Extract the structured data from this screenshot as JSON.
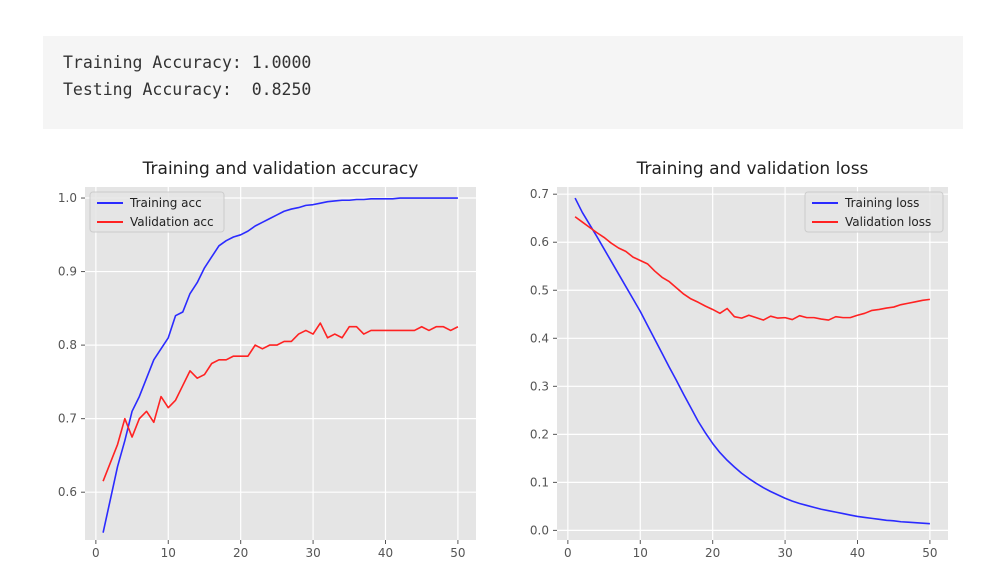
{
  "output": {
    "lines": [
      "Training Accuracy: 1.0000",
      "Testing Accuracy:  0.8250"
    ]
  },
  "colors": {
    "training": "#2b2bff",
    "validation": "#ff2222",
    "plot_bg": "#e5e5e5",
    "grid": "#ffffff"
  },
  "chart_data": [
    {
      "type": "line",
      "title": "Training and validation accuracy",
      "xlabel": "",
      "ylabel": "",
      "xlim": [
        -1.5,
        52.5
      ],
      "ylim": [
        0.535,
        1.015
      ],
      "xticks": [
        0,
        10,
        20,
        30,
        40,
        50
      ],
      "yticks": [
        0.6,
        0.7,
        0.8,
        0.9,
        1.0
      ],
      "xtick_labels": [
        "0",
        "10",
        "20",
        "30",
        "40",
        "50"
      ],
      "ytick_labels": [
        "0.6",
        "0.7",
        "0.8",
        "0.9",
        "1.0"
      ],
      "grid": true,
      "legend_position": "upper-left",
      "x": [
        1,
        2,
        3,
        4,
        5,
        6,
        7,
        8,
        9,
        10,
        11,
        12,
        13,
        14,
        15,
        16,
        17,
        18,
        19,
        20,
        21,
        22,
        23,
        24,
        25,
        26,
        27,
        28,
        29,
        30,
        31,
        32,
        33,
        34,
        35,
        36,
        37,
        38,
        39,
        40,
        41,
        42,
        43,
        44,
        45,
        46,
        47,
        48,
        49,
        50
      ],
      "series": [
        {
          "name": "Training acc",
          "color": "#2b2bff",
          "values": [
            0.545,
            0.59,
            0.635,
            0.67,
            0.71,
            0.73,
            0.755,
            0.78,
            0.795,
            0.81,
            0.84,
            0.845,
            0.87,
            0.885,
            0.905,
            0.92,
            0.935,
            0.942,
            0.947,
            0.95,
            0.955,
            0.962,
            0.967,
            0.972,
            0.977,
            0.982,
            0.985,
            0.987,
            0.99,
            0.991,
            0.993,
            0.995,
            0.996,
            0.997,
            0.997,
            0.998,
            0.998,
            0.999,
            0.999,
            0.999,
            0.999,
            1.0,
            1.0,
            1.0,
            1.0,
            1.0,
            1.0,
            1.0,
            1.0,
            1.0
          ]
        },
        {
          "name": "Validation acc",
          "color": "#ff2222",
          "values": [
            0.615,
            0.64,
            0.665,
            0.7,
            0.675,
            0.7,
            0.71,
            0.695,
            0.73,
            0.715,
            0.725,
            0.745,
            0.765,
            0.755,
            0.76,
            0.775,
            0.78,
            0.78,
            0.785,
            0.785,
            0.785,
            0.8,
            0.795,
            0.8,
            0.8,
            0.805,
            0.805,
            0.815,
            0.82,
            0.815,
            0.83,
            0.81,
            0.815,
            0.81,
            0.825,
            0.825,
            0.815,
            0.82,
            0.82,
            0.82,
            0.82,
            0.82,
            0.82,
            0.82,
            0.825,
            0.82,
            0.825,
            0.825,
            0.82,
            0.825
          ]
        }
      ]
    },
    {
      "type": "line",
      "title": "Training and validation loss",
      "xlabel": "",
      "ylabel": "",
      "xlim": [
        -1.5,
        52.5
      ],
      "ylim": [
        -0.02,
        0.715
      ],
      "xticks": [
        0,
        10,
        20,
        30,
        40,
        50
      ],
      "yticks": [
        0.0,
        0.1,
        0.2,
        0.3,
        0.4,
        0.5,
        0.6,
        0.7
      ],
      "xtick_labels": [
        "0",
        "10",
        "20",
        "30",
        "40",
        "50"
      ],
      "ytick_labels": [
        "0.0",
        "0.1",
        "0.2",
        "0.3",
        "0.4",
        "0.5",
        "0.6",
        "0.7"
      ],
      "grid": true,
      "legend_position": "upper-right",
      "x": [
        1,
        2,
        3,
        4,
        5,
        6,
        7,
        8,
        9,
        10,
        11,
        12,
        13,
        14,
        15,
        16,
        17,
        18,
        19,
        20,
        21,
        22,
        23,
        24,
        25,
        26,
        27,
        28,
        29,
        30,
        31,
        32,
        33,
        34,
        35,
        36,
        37,
        38,
        39,
        40,
        41,
        42,
        43,
        44,
        45,
        46,
        47,
        48,
        49,
        50
      ],
      "series": [
        {
          "name": "Training loss",
          "color": "#2b2bff",
          "values": [
            0.692,
            0.662,
            0.637,
            0.612,
            0.586,
            0.56,
            0.534,
            0.508,
            0.482,
            0.456,
            0.427,
            0.398,
            0.369,
            0.34,
            0.312,
            0.283,
            0.255,
            0.227,
            0.203,
            0.181,
            0.162,
            0.146,
            0.132,
            0.119,
            0.108,
            0.098,
            0.089,
            0.081,
            0.074,
            0.067,
            0.061,
            0.056,
            0.052,
            0.048,
            0.044,
            0.041,
            0.038,
            0.035,
            0.032,
            0.029,
            0.027,
            0.025,
            0.023,
            0.021,
            0.02,
            0.018,
            0.017,
            0.016,
            0.015,
            0.014
          ]
        },
        {
          "name": "Validation loss",
          "color": "#ff2222",
          "values": [
            0.653,
            0.642,
            0.631,
            0.62,
            0.61,
            0.598,
            0.588,
            0.581,
            0.569,
            0.562,
            0.555,
            0.54,
            0.527,
            0.518,
            0.505,
            0.492,
            0.482,
            0.475,
            0.467,
            0.46,
            0.452,
            0.462,
            0.445,
            0.442,
            0.448,
            0.443,
            0.438,
            0.446,
            0.442,
            0.443,
            0.439,
            0.447,
            0.443,
            0.443,
            0.44,
            0.438,
            0.445,
            0.443,
            0.443,
            0.448,
            0.452,
            0.458,
            0.46,
            0.463,
            0.465,
            0.47,
            0.473,
            0.476,
            0.479,
            0.481
          ]
        }
      ]
    }
  ]
}
